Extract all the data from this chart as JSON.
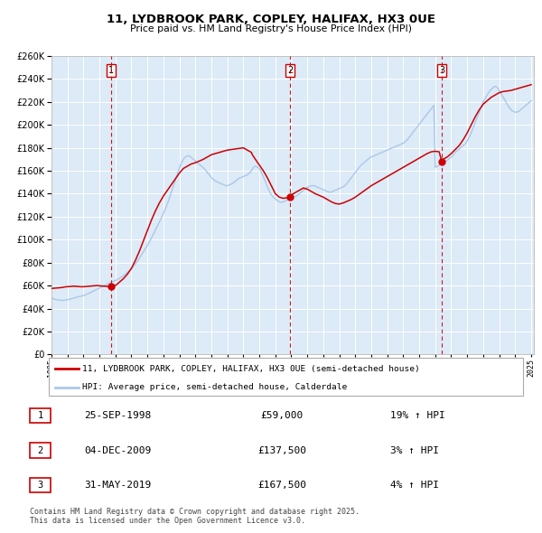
{
  "title": "11, LYDBROOK PARK, COPLEY, HALIFAX, HX3 0UE",
  "subtitle": "Price paid vs. HM Land Registry's House Price Index (HPI)",
  "legend_line1": "11, LYDBROOK PARK, COPLEY, HALIFAX, HX3 0UE (semi-detached house)",
  "legend_line2": "HPI: Average price, semi-detached house, Calderdale",
  "footnote1": "Contains HM Land Registry data © Crown copyright and database right 2025.",
  "footnote2": "This data is licensed under the Open Government Licence v3.0.",
  "sale_color": "#cc0000",
  "hpi_color": "#aac8e8",
  "plot_bg": "#ddeaf7",
  "grid_color": "#ffffff",
  "ylim": [
    0,
    260000
  ],
  "ytick_step": 20000,
  "sale_events": [
    {
      "date": 1998.73,
      "price": 59000,
      "label": "1",
      "date_str": "25-SEP-1998",
      "price_str": "£59,000",
      "pct": "19% ↑ HPI"
    },
    {
      "date": 2009.92,
      "price": 137500,
      "label": "2",
      "date_str": "04-DEC-2009",
      "price_str": "£137,500",
      "pct": "3% ↑ HPI"
    },
    {
      "date": 2019.41,
      "price": 167500,
      "label": "3",
      "date_str": "31-MAY-2019",
      "price_str": "£167,500",
      "pct": "4% ↑ HPI"
    }
  ],
  "hpi_years": [
    1995.0,
    1995.083,
    1995.167,
    1995.25,
    1995.333,
    1995.417,
    1995.5,
    1995.583,
    1995.667,
    1995.75,
    1995.833,
    1995.917,
    1996.0,
    1996.083,
    1996.167,
    1996.25,
    1996.333,
    1996.417,
    1996.5,
    1996.583,
    1996.667,
    1996.75,
    1996.833,
    1996.917,
    1997.0,
    1997.083,
    1997.167,
    1997.25,
    1997.333,
    1997.417,
    1997.5,
    1997.583,
    1997.667,
    1997.75,
    1997.833,
    1997.917,
    1998.0,
    1998.083,
    1998.167,
    1998.25,
    1998.333,
    1998.417,
    1998.5,
    1998.583,
    1998.667,
    1998.75,
    1998.833,
    1998.917,
    1999.0,
    1999.083,
    1999.167,
    1999.25,
    1999.333,
    1999.417,
    1999.5,
    1999.583,
    1999.667,
    1999.75,
    1999.833,
    1999.917,
    2000.0,
    2000.083,
    2000.167,
    2000.25,
    2000.333,
    2000.417,
    2000.5,
    2000.583,
    2000.667,
    2000.75,
    2000.833,
    2000.917,
    2001.0,
    2001.083,
    2001.167,
    2001.25,
    2001.333,
    2001.417,
    2001.5,
    2001.583,
    2001.667,
    2001.75,
    2001.833,
    2001.917,
    2002.0,
    2002.083,
    2002.167,
    2002.25,
    2002.333,
    2002.417,
    2002.5,
    2002.583,
    2002.667,
    2002.75,
    2002.833,
    2002.917,
    2003.0,
    2003.083,
    2003.167,
    2003.25,
    2003.333,
    2003.417,
    2003.5,
    2003.583,
    2003.667,
    2003.75,
    2003.833,
    2003.917,
    2004.0,
    2004.083,
    2004.167,
    2004.25,
    2004.333,
    2004.417,
    2004.5,
    2004.583,
    2004.667,
    2004.75,
    2004.833,
    2004.917,
    2005.0,
    2005.083,
    2005.167,
    2005.25,
    2005.333,
    2005.417,
    2005.5,
    2005.583,
    2005.667,
    2005.75,
    2005.833,
    2005.917,
    2006.0,
    2006.083,
    2006.167,
    2006.25,
    2006.333,
    2006.417,
    2006.5,
    2006.583,
    2006.667,
    2006.75,
    2006.833,
    2006.917,
    2007.0,
    2007.083,
    2007.167,
    2007.25,
    2007.333,
    2007.417,
    2007.5,
    2007.583,
    2007.667,
    2007.75,
    2007.833,
    2007.917,
    2008.0,
    2008.083,
    2008.167,
    2008.25,
    2008.333,
    2008.417,
    2008.5,
    2008.583,
    2008.667,
    2008.75,
    2008.833,
    2008.917,
    2009.0,
    2009.083,
    2009.167,
    2009.25,
    2009.333,
    2009.417,
    2009.5,
    2009.583,
    2009.667,
    2009.75,
    2009.833,
    2009.917,
    2010.0,
    2010.083,
    2010.167,
    2010.25,
    2010.333,
    2010.417,
    2010.5,
    2010.583,
    2010.667,
    2010.75,
    2010.833,
    2010.917,
    2011.0,
    2011.083,
    2011.167,
    2011.25,
    2011.333,
    2011.417,
    2011.5,
    2011.583,
    2011.667,
    2011.75,
    2011.833,
    2011.917,
    2012.0,
    2012.083,
    2012.167,
    2012.25,
    2012.333,
    2012.417,
    2012.5,
    2012.583,
    2012.667,
    2012.75,
    2012.833,
    2012.917,
    2013.0,
    2013.083,
    2013.167,
    2013.25,
    2013.333,
    2013.417,
    2013.5,
    2013.583,
    2013.667,
    2013.75,
    2013.833,
    2013.917,
    2014.0,
    2014.083,
    2014.167,
    2014.25,
    2014.333,
    2014.417,
    2014.5,
    2014.583,
    2014.667,
    2014.75,
    2014.833,
    2014.917,
    2015.0,
    2015.083,
    2015.167,
    2015.25,
    2015.333,
    2015.417,
    2015.5,
    2015.583,
    2015.667,
    2015.75,
    2015.833,
    2015.917,
    2016.0,
    2016.083,
    2016.167,
    2016.25,
    2016.333,
    2016.417,
    2016.5,
    2016.583,
    2016.667,
    2016.75,
    2016.833,
    2016.917,
    2017.0,
    2017.083,
    2017.167,
    2017.25,
    2017.333,
    2017.417,
    2017.5,
    2017.583,
    2017.667,
    2017.75,
    2017.833,
    2017.917,
    2018.0,
    2018.083,
    2018.167,
    2018.25,
    2018.333,
    2018.417,
    2018.5,
    2018.583,
    2018.667,
    2018.75,
    2018.833,
    2018.917,
    2019.0,
    2019.083,
    2019.167,
    2019.25,
    2019.333,
    2019.417,
    2019.5,
    2019.583,
    2019.667,
    2019.75,
    2019.833,
    2019.917,
    2020.0,
    2020.083,
    2020.167,
    2020.25,
    2020.333,
    2020.417,
    2020.5,
    2020.583,
    2020.667,
    2020.75,
    2020.833,
    2020.917,
    2021.0,
    2021.083,
    2021.167,
    2021.25,
    2021.333,
    2021.417,
    2021.5,
    2021.583,
    2021.667,
    2021.75,
    2021.833,
    2021.917,
    2022.0,
    2022.083,
    2022.167,
    2022.25,
    2022.333,
    2022.417,
    2022.5,
    2022.583,
    2022.667,
    2022.75,
    2022.833,
    2022.917,
    2023.0,
    2023.083,
    2023.167,
    2023.25,
    2023.333,
    2023.417,
    2023.5,
    2023.583,
    2023.667,
    2023.75,
    2023.833,
    2023.917,
    2024.0,
    2024.083,
    2024.167,
    2024.25,
    2024.333,
    2024.417,
    2024.5,
    2024.583,
    2024.667,
    2024.75,
    2024.833,
    2024.917,
    2025.0
  ],
  "hpi_vals": [
    49000,
    48500,
    48200,
    47900,
    47700,
    47500,
    47300,
    47200,
    47000,
    47100,
    47300,
    47500,
    47700,
    48000,
    48200,
    48500,
    48800,
    49200,
    49500,
    49900,
    50200,
    50500,
    50700,
    51000,
    51300,
    51700,
    52200,
    52700,
    53200,
    53700,
    54300,
    54900,
    55500,
    56100,
    56700,
    57300,
    57900,
    58500,
    59000,
    59600,
    60200,
    60700,
    61300,
    61900,
    62400,
    62900,
    63400,
    63900,
    64400,
    65000,
    65600,
    66300,
    67000,
    67800,
    68700,
    69600,
    70500,
    71500,
    72500,
    73500,
    74700,
    76000,
    77400,
    78900,
    80400,
    82100,
    83900,
    85700,
    87500,
    89400,
    91300,
    93200,
    95100,
    97100,
    99200,
    101400,
    103700,
    106000,
    108300,
    110700,
    113000,
    115400,
    117800,
    120200,
    122700,
    125400,
    128200,
    131200,
    134500,
    138000,
    141500,
    145000,
    148500,
    152000,
    155500,
    159000,
    162500,
    165500,
    168000,
    170000,
    171500,
    172500,
    173000,
    173000,
    172500,
    171500,
    170500,
    169500,
    168500,
    167500,
    166500,
    165500,
    164500,
    163500,
    162500,
    161500,
    160000,
    158500,
    157000,
    155500,
    154000,
    153000,
    152000,
    151000,
    150500,
    150000,
    149500,
    149000,
    148500,
    148000,
    147500,
    147000,
    147000,
    147500,
    148000,
    148500,
    149000,
    150000,
    151000,
    152000,
    153000,
    153500,
    154000,
    154500,
    155000,
    155500,
    156000,
    156500,
    157500,
    158500,
    160000,
    162000,
    163500,
    164000,
    163500,
    163000,
    162000,
    160000,
    157500,
    155000,
    152000,
    149000,
    146000,
    143500,
    141000,
    139000,
    137500,
    136500,
    135500,
    134500,
    133500,
    133000,
    132500,
    132500,
    133000,
    133500,
    134000,
    134500,
    135000,
    135500,
    136000,
    136500,
    137000,
    137500,
    138000,
    139000,
    140000,
    141000,
    142000,
    143000,
    144000,
    145000,
    145500,
    146000,
    146500,
    147000,
    147000,
    147000,
    146500,
    146000,
    145500,
    145000,
    144500,
    144000,
    143500,
    143000,
    142500,
    142000,
    141500,
    141500,
    141500,
    142000,
    142500,
    143000,
    143500,
    144000,
    144500,
    145000,
    145500,
    146000,
    147000,
    148000,
    149500,
    151000,
    152500,
    154000,
    155500,
    157000,
    158500,
    160000,
    161500,
    163000,
    164500,
    165500,
    166500,
    167500,
    168500,
    169500,
    170500,
    171500,
    172000,
    172500,
    173000,
    173500,
    174000,
    174500,
    175000,
    175500,
    176000,
    176500,
    177000,
    177500,
    178000,
    178500,
    179000,
    179500,
    180000,
    180500,
    181000,
    181500,
    182000,
    182500,
    183000,
    183500,
    184000,
    185000,
    186000,
    187000,
    188500,
    190000,
    191500,
    193000,
    194500,
    196000,
    197500,
    199000,
    200500,
    202000,
    203500,
    205000,
    206500,
    208000,
    209500,
    211000,
    212500,
    214000,
    215500,
    217000,
    163000,
    163500,
    164000,
    165000,
    166000,
    167000,
    167500,
    168000,
    168500,
    169000,
    170000,
    171000,
    172000,
    173000,
    174500,
    176000,
    177000,
    178000,
    179000,
    180000,
    181000,
    182000,
    183000,
    184000,
    186000,
    188000,
    190500,
    193000,
    196000,
    199000,
    202000,
    205000,
    208000,
    211000,
    214000,
    217000,
    220000,
    222000,
    224000,
    226000,
    228000,
    229500,
    231000,
    232000,
    233000,
    233500,
    233000,
    232000,
    230000,
    228000,
    226000,
    224000,
    222000,
    220000,
    218000,
    216000,
    214500,
    213000,
    212000,
    211500,
    211000,
    211000,
    211500,
    212000,
    213000,
    214000,
    215000,
    216000,
    217000,
    218000,
    219000,
    220000,
    221000
  ],
  "red_years": [
    1995.0,
    1995.083,
    1995.167,
    1995.25,
    1995.333,
    1995.417,
    1995.5,
    1995.583,
    1995.667,
    1995.75,
    1995.833,
    1995.917,
    1996.0,
    1996.083,
    1996.167,
    1996.25,
    1996.333,
    1996.417,
    1996.5,
    1996.583,
    1996.667,
    1996.75,
    1996.833,
    1996.917,
    1997.0,
    1997.083,
    1997.167,
    1997.25,
    1997.333,
    1997.417,
    1997.5,
    1997.583,
    1997.667,
    1997.75,
    1997.833,
    1997.917,
    1998.0,
    1998.083,
    1998.167,
    1998.25,
    1998.333,
    1998.417,
    1998.5,
    1998.583,
    1998.667,
    1998.73,
    1999.0,
    1999.25,
    1999.5,
    1999.75,
    2000.0,
    2000.25,
    2000.5,
    2000.75,
    2001.0,
    2001.25,
    2001.5,
    2001.75,
    2002.0,
    2002.25,
    2002.5,
    2002.75,
    2003.0,
    2003.25,
    2003.5,
    2003.75,
    2004.0,
    2004.25,
    2004.5,
    2004.75,
    2005.0,
    2005.25,
    2005.5,
    2005.75,
    2006.0,
    2006.25,
    2006.5,
    2006.75,
    2007.0,
    2007.25,
    2007.5,
    2007.583,
    2007.75,
    2008.0,
    2008.25,
    2008.5,
    2008.75,
    2009.0,
    2009.25,
    2009.5,
    2009.75,
    2009.92,
    2010.0,
    2010.25,
    2010.5,
    2010.75,
    2011.0,
    2011.25,
    2011.5,
    2011.75,
    2012.0,
    2012.25,
    2012.5,
    2012.75,
    2013.0,
    2013.25,
    2013.5,
    2013.75,
    2014.0,
    2014.25,
    2014.5,
    2014.75,
    2015.0,
    2015.25,
    2015.5,
    2015.75,
    2016.0,
    2016.25,
    2016.5,
    2016.75,
    2017.0,
    2017.25,
    2017.5,
    2017.75,
    2018.0,
    2018.25,
    2018.5,
    2018.75,
    2019.0,
    2019.25,
    2019.41,
    2019.5,
    2019.75,
    2020.0,
    2020.25,
    2020.5,
    2020.75,
    2021.0,
    2021.25,
    2021.5,
    2021.75,
    2022.0,
    2022.25,
    2022.5,
    2022.75,
    2023.0,
    2023.25,
    2023.5,
    2023.75,
    2024.0,
    2024.25,
    2024.5,
    2024.75,
    2025.0
  ],
  "red_vals": [
    57500,
    57600,
    57700,
    57800,
    57900,
    58000,
    58100,
    58200,
    58400,
    58600,
    58800,
    59000,
    59000,
    59100,
    59200,
    59300,
    59400,
    59500,
    59400,
    59300,
    59200,
    59100,
    59000,
    59000,
    59000,
    59100,
    59200,
    59300,
    59400,
    59500,
    59600,
    59700,
    59800,
    59900,
    60000,
    60000,
    59800,
    59700,
    59600,
    59500,
    59400,
    59300,
    59200,
    59100,
    59000,
    59000,
    60000,
    63000,
    66000,
    70000,
    75000,
    82000,
    90000,
    99000,
    108000,
    117000,
    125000,
    132000,
    138000,
    143000,
    148000,
    153000,
    158000,
    162000,
    164000,
    166000,
    167000,
    168500,
    170000,
    172000,
    174000,
    175000,
    176000,
    177000,
    178000,
    178500,
    179000,
    179500,
    180000,
    178000,
    176000,
    173500,
    170000,
    165000,
    160000,
    154000,
    147000,
    140000,
    137000,
    136000,
    136500,
    137500,
    139000,
    141000,
    143000,
    145000,
    144000,
    142000,
    140000,
    138500,
    137000,
    135000,
    133000,
    131500,
    131000,
    132000,
    133500,
    135000,
    137000,
    139500,
    142000,
    144500,
    147000,
    149000,
    151000,
    153000,
    155000,
    157000,
    159000,
    161000,
    163000,
    165000,
    167000,
    169000,
    171000,
    173000,
    175000,
    176500,
    177000,
    176500,
    167500,
    170000,
    172000,
    175000,
    178500,
    182000,
    187000,
    193000,
    200000,
    207000,
    213000,
    218000,
    221000,
    224000,
    226000,
    228000,
    229000,
    229500,
    230000,
    231000,
    232000,
    233000,
    234000,
    235000
  ]
}
